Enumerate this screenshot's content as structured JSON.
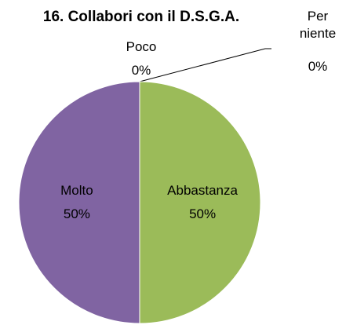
{
  "chart_data": {
    "type": "pie",
    "title": "16. Collabori con il D.S.G.A.",
    "categories": [
      "Per niente",
      "Poco",
      "Abbastanza",
      "Molto"
    ],
    "values": [
      0,
      0,
      50,
      50
    ],
    "value_labels": [
      "0%",
      "0%",
      "50%",
      "50%"
    ],
    "colors": [
      "#4F81BD",
      "#C0504D",
      "#9BBB59",
      "#8064A2"
    ]
  }
}
